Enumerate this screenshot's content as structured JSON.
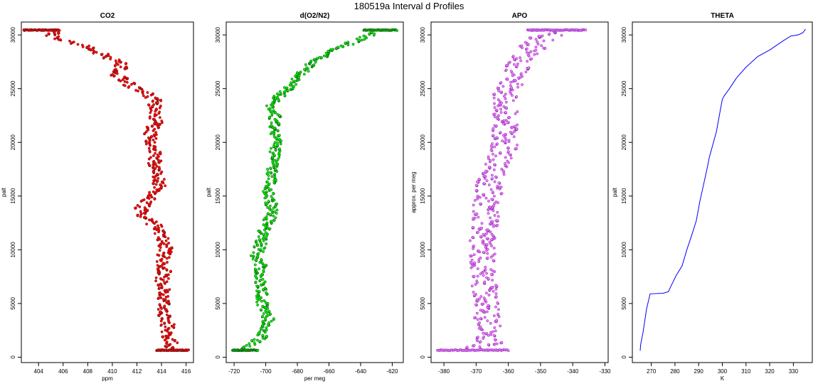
{
  "figure_title": "180519a   Interval d Profiles",
  "chart_data": [
    {
      "type": "scatter",
      "title": "CO2",
      "xlabel": "ppm",
      "ylabel": "palt",
      "xlim": [
        402.6,
        416.6
      ],
      "ylim": [
        -500,
        31200
      ],
      "xticks": [
        404,
        406,
        408,
        410,
        412,
        414,
        416
      ],
      "yticks": [
        0,
        5000,
        10000,
        15000,
        20000,
        25000,
        30000
      ],
      "color": "#ff0000",
      "edge_color": "#7a1a1a",
      "profile": [
        [
          405.0,
          30450
        ],
        [
          405.2,
          29900
        ],
        [
          406.0,
          29500
        ],
        [
          407.5,
          29000
        ],
        [
          408.5,
          28600
        ],
        [
          409.3,
          28100
        ],
        [
          410.3,
          27600
        ],
        [
          410.8,
          27000
        ],
        [
          410.0,
          26500
        ],
        [
          410.7,
          26000
        ],
        [
          411.5,
          25300
        ],
        [
          412.5,
          24700
        ],
        [
          413.5,
          24000
        ],
        [
          413.4,
          23000
        ],
        [
          413.6,
          22000
        ],
        [
          413.2,
          21000
        ],
        [
          413.0,
          20000
        ],
        [
          413.6,
          19000
        ],
        [
          413.4,
          18000
        ],
        [
          413.8,
          17000
        ],
        [
          413.9,
          16000
        ],
        [
          413.3,
          15000
        ],
        [
          412.3,
          13800
        ],
        [
          412.6,
          13000
        ],
        [
          413.8,
          12000
        ],
        [
          414.2,
          11000
        ],
        [
          414.4,
          10000
        ],
        [
          414.0,
          9000
        ],
        [
          414.3,
          8000
        ],
        [
          413.9,
          7000
        ],
        [
          414.2,
          6000
        ],
        [
          414.1,
          5000
        ],
        [
          414.2,
          4000
        ],
        [
          414.5,
          3000
        ],
        [
          414.6,
          2000
        ],
        [
          414.8,
          1200
        ],
        [
          414.6,
          700
        ]
      ],
      "spread": 0.55,
      "surface_band": {
        "y": 650,
        "x_min": 413.6,
        "x_max": 416.2
      },
      "top_band": {
        "y": 30450,
        "x_min": 402.8,
        "x_max": 405.7
      }
    },
    {
      "type": "scatter",
      "title": "d(O2/N2)",
      "xlabel": "per meg",
      "ylabel": "palt",
      "xlim": [
        -725,
        -613
      ],
      "ylim": [
        -500,
        31200
      ],
      "xticks": [
        -720,
        -700,
        -680,
        -660,
        -640,
        -620
      ],
      "yticks": [
        0,
        5000,
        10000,
        15000,
        20000,
        25000,
        30000
      ],
      "color": "#00ee00",
      "edge_color": "#1a5a1a",
      "profile": [
        [
          -626,
          30450
        ],
        [
          -636,
          29900
        ],
        [
          -645,
          29300
        ],
        [
          -655,
          28700
        ],
        [
          -662,
          28100
        ],
        [
          -670,
          27400
        ],
        [
          -676,
          26600
        ],
        [
          -681,
          25800
        ],
        [
          -686,
          25000
        ],
        [
          -692,
          24200
        ],
        [
          -697,
          23500
        ],
        [
          -694,
          22500
        ],
        [
          -695,
          21500
        ],
        [
          -693,
          20500
        ],
        [
          -694,
          19500
        ],
        [
          -695,
          18500
        ],
        [
          -696,
          17500
        ],
        [
          -697,
          16500
        ],
        [
          -699,
          15500
        ],
        [
          -697,
          14500
        ],
        [
          -695,
          13500
        ],
        [
          -699,
          12500
        ],
        [
          -702,
          11500
        ],
        [
          -703,
          10500
        ],
        [
          -706,
          9500
        ],
        [
          -703,
          8500
        ],
        [
          -704,
          7500
        ],
        [
          -702,
          6500
        ],
        [
          -703,
          5500
        ],
        [
          -701,
          4500
        ],
        [
          -698,
          3500
        ],
        [
          -700,
          2500
        ],
        [
          -703,
          1800
        ],
        [
          -709,
          1200
        ],
        [
          -712,
          700
        ]
      ],
      "spread": 3.5,
      "surface_band": {
        "y": 650,
        "x_min": -721,
        "x_max": -705
      },
      "top_band": {
        "y": 30450,
        "x_min": -638,
        "x_max": -617
      }
    },
    {
      "type": "scatter",
      "title": "APO",
      "xlabel": "",
      "ylabel": "approx. per meg",
      "xlim": [
        -384,
        -329
      ],
      "ylim": [
        -500,
        31200
      ],
      "xticks": [
        -380,
        -370,
        -360,
        -350,
        -340,
        -330
      ],
      "yticks": [
        0,
        5000,
        10000,
        15000,
        20000,
        25000,
        30000
      ],
      "color": "#ee82ee",
      "edge_color": "#8a20c0",
      "profile": [
        [
          -342,
          30450
        ],
        [
          -349,
          29800
        ],
        [
          -352,
          29000
        ],
        [
          -355,
          28000
        ],
        [
          -357,
          27000
        ],
        [
          -358,
          26000
        ],
        [
          -360,
          25000
        ],
        [
          -361,
          24000
        ],
        [
          -361,
          23000
        ],
        [
          -361,
          22000
        ],
        [
          -361,
          21000
        ],
        [
          -361,
          20000
        ],
        [
          -362,
          19000
        ],
        [
          -363,
          18000
        ],
        [
          -365,
          17000
        ],
        [
          -366,
          16000
        ],
        [
          -366,
          15000
        ],
        [
          -367,
          14000
        ],
        [
          -367,
          13000
        ],
        [
          -367,
          12000
        ],
        [
          -368,
          11000
        ],
        [
          -368,
          10000
        ],
        [
          -368,
          9000
        ],
        [
          -368,
          8000
        ],
        [
          -368,
          7000
        ],
        [
          -367,
          6000
        ],
        [
          -367,
          5000
        ],
        [
          -367,
          4000
        ],
        [
          -366,
          3000
        ],
        [
          -366,
          2000
        ],
        [
          -366,
          1300
        ],
        [
          -370,
          800
        ]
      ],
      "spread": 4.0,
      "surface_band": {
        "y": 650,
        "x_min": -382,
        "x_max": -360
      },
      "top_band": {
        "y": 30450,
        "x_min": -354,
        "x_max": -336
      }
    },
    {
      "type": "line",
      "title": "THETA",
      "xlabel": "K",
      "ylabel": "palt",
      "xlim": [
        262,
        338
      ],
      "ylim": [
        -500,
        31200
      ],
      "xticks": [
        270,
        280,
        290,
        300,
        310,
        320,
        330
      ],
      "yticks": [
        0,
        5000,
        10000,
        15000,
        20000,
        25000,
        30000
      ],
      "color": "#0000ff",
      "x": [
        265.3,
        265.5,
        266.5,
        267.0,
        268.0,
        269.5,
        275.0,
        277.2,
        278.5,
        280.5,
        283.0,
        285.0,
        287.0,
        289.0,
        290.5,
        292.0,
        293.5,
        294.5,
        296.0,
        297.5,
        298.5,
        299.3,
        300.0,
        300.7,
        303.0,
        306.0,
        310.0,
        315.0,
        320.0,
        326.0,
        329.0,
        332.0,
        334.0,
        335.0,
        335.2
      ],
      "y": [
        600,
        1200,
        2300,
        3000,
        4500,
        5900,
        5950,
        6100,
        6700,
        7600,
        8500,
        10000,
        11300,
        12700,
        14500,
        16000,
        17500,
        18600,
        19800,
        21000,
        22200,
        23200,
        24000,
        24300,
        25000,
        26000,
        27000,
        28000,
        28600,
        29500,
        29900,
        30000,
        30200,
        30500,
        30500
      ]
    }
  ]
}
